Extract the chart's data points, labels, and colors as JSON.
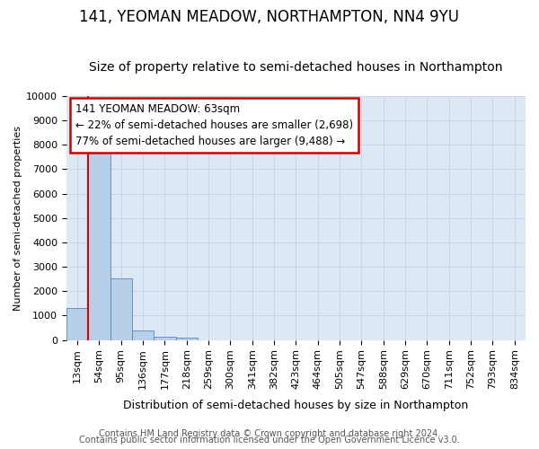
{
  "title": "141, YEOMAN MEADOW, NORTHAMPTON, NN4 9YU",
  "subtitle": "Size of property relative to semi-detached houses in Northampton",
  "xlabel": "Distribution of semi-detached houses by size in Northampton",
  "ylabel": "Number of semi-detached properties",
  "footer_line1": "Contains HM Land Registry data © Crown copyright and database right 2024.",
  "footer_line2": "Contains public sector information licensed under the Open Government Licence v3.0.",
  "bar_labels": [
    "13sqm",
    "54sqm",
    "95sqm",
    "136sqm",
    "177sqm",
    "218sqm",
    "259sqm",
    "300sqm",
    "341sqm",
    "382sqm",
    "423sqm",
    "464sqm",
    "505sqm",
    "547sqm",
    "588sqm",
    "629sqm",
    "670sqm",
    "711sqm",
    "752sqm",
    "793sqm",
    "834sqm"
  ],
  "bar_values": [
    1320,
    8050,
    2530,
    390,
    150,
    90,
    0,
    0,
    0,
    0,
    0,
    0,
    0,
    0,
    0,
    0,
    0,
    0,
    0,
    0,
    0
  ],
  "bar_color": "#b8cfe8",
  "bar_edge_color": "#5588bb",
  "subject_label": "141 YEOMAN MEADOW: 63sqm",
  "pct_smaller": 22,
  "n_smaller": 2698,
  "pct_larger": 77,
  "n_larger": 9488,
  "annotation_box_color": "#ffffff",
  "annotation_box_edge": "#cc0000",
  "redline_x": 0.5,
  "ylim": [
    0,
    10000
  ],
  "yticks": [
    0,
    1000,
    2000,
    3000,
    4000,
    5000,
    6000,
    7000,
    8000,
    9000,
    10000
  ],
  "grid_color": "#c8d4e8",
  "bg_color": "#dde8f5",
  "title_fontsize": 12,
  "subtitle_fontsize": 10,
  "xlabel_fontsize": 9,
  "ylabel_fontsize": 8,
  "tick_fontsize": 8,
  "annotation_fontsize": 8.5,
  "footer_fontsize": 7
}
